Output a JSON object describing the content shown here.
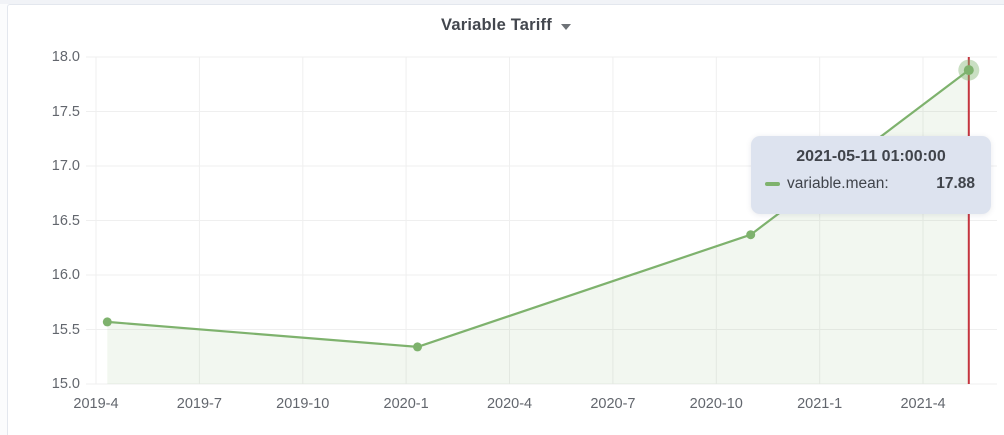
{
  "panel": {
    "title": "Variable Tariff",
    "caret_icon": "chevron-down"
  },
  "chart_data": {
    "type": "line",
    "title": "Variable Tariff",
    "xlabel": "",
    "ylabel": "",
    "grid": true,
    "legend_position": "none",
    "y_range": [
      15.0,
      18.0
    ],
    "y_ticks": [
      "18.0",
      "17.5",
      "17.0",
      "16.5",
      "16.0",
      "15.5",
      "15.0"
    ],
    "x_ticks": [
      "2019-4",
      "2019-7",
      "2019-10",
      "2020-1",
      "2020-4",
      "2020-7",
      "2020-10",
      "2021-1",
      "2021-4"
    ],
    "series": [
      {
        "name": "variable.mean",
        "color": "#7eb26d",
        "fill_opacity": 0.1,
        "points": [
          {
            "x": "2019-04-11",
            "y": 15.57
          },
          {
            "x": "2020-01-11",
            "y": 15.34
          },
          {
            "x": "2020-11-01",
            "y": 16.37
          },
          {
            "x": "2021-05-11",
            "y": 17.88
          }
        ]
      }
    ],
    "cursor": {
      "color": "#c4353f",
      "hovered_point_index": 3
    }
  },
  "tooltip": {
    "timestamp": "2021-05-11 01:00:00",
    "series_label": "variable.mean:",
    "value": "17.88",
    "bg_color": "#dde3ef"
  },
  "colors": {
    "series_green": "#7eb26d",
    "cursor_red": "#c4353f",
    "gridline": "#efefef",
    "axis_text": "#62666d",
    "panel_border": "#e3e7ee"
  }
}
